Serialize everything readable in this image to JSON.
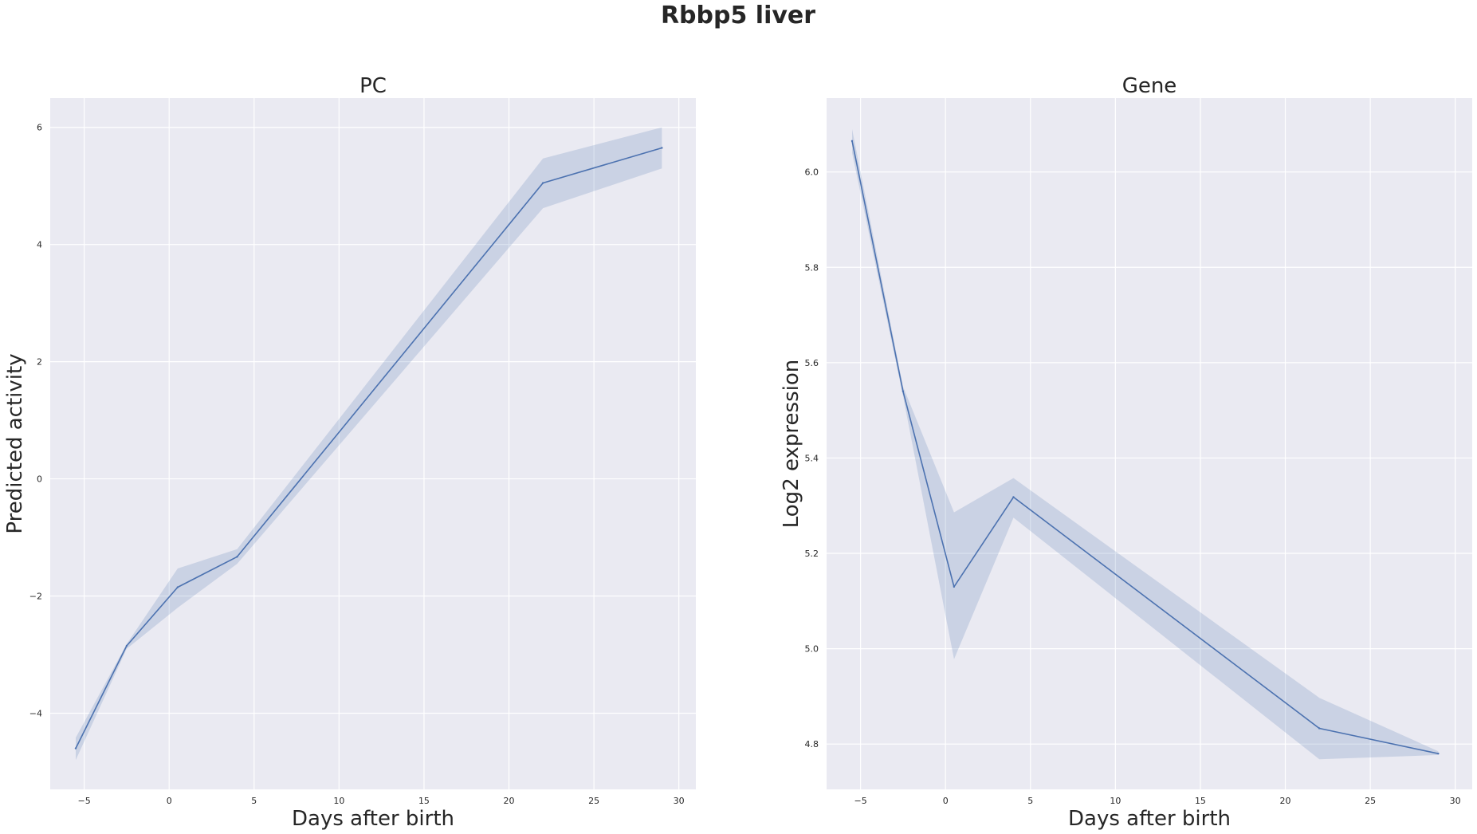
{
  "figure": {
    "title": "Rbbp5 liver"
  },
  "chart_data": [
    {
      "type": "line",
      "title": "PC",
      "xlabel": "Days after birth",
      "ylabel": "Predicted activity",
      "xlim": [
        -7,
        31
      ],
      "ylim": [
        -5.3,
        6.5
      ],
      "xticks": [
        -5,
        0,
        5,
        10,
        15,
        20,
        25,
        30
      ],
      "yticks": [
        -4,
        -2,
        0,
        2,
        4,
        6
      ],
      "ytick_labels": [
        "−4",
        "−2",
        "0",
        "2",
        "4",
        "6"
      ],
      "xtick_labels": [
        "−5",
        "0",
        "5",
        "10",
        "15",
        "20",
        "25",
        "30"
      ],
      "grid": true,
      "series": [
        {
          "x": [
            -5.5,
            -2.5,
            0.5,
            4,
            22,
            29
          ],
          "y": [
            -4.6,
            -2.85,
            -1.85,
            -1.33,
            5.05,
            5.65
          ],
          "ci_low": [
            -4.8,
            -2.9,
            -2.2,
            -1.45,
            4.62,
            5.3
          ],
          "ci_high": [
            -4.42,
            -2.82,
            -1.53,
            -1.2,
            5.47,
            6.0
          ]
        }
      ]
    },
    {
      "type": "line",
      "title": "Gene",
      "xlabel": "Days after birth",
      "ylabel": "Log2 expression",
      "xlim": [
        -7,
        31
      ],
      "ylim": [
        4.705,
        6.155
      ],
      "xticks": [
        -5,
        0,
        5,
        10,
        15,
        20,
        25,
        30
      ],
      "yticks": [
        4.8,
        5.0,
        5.2,
        5.4,
        5.6,
        5.8,
        6.0
      ],
      "ytick_labels": [
        "4.8",
        "5.0",
        "5.2",
        "5.4",
        "5.6",
        "5.8",
        "6.0"
      ],
      "xtick_labels": [
        "−5",
        "0",
        "5",
        "10",
        "15",
        "20",
        "25",
        "30"
      ],
      "grid": true,
      "series": [
        {
          "x": [
            -5.5,
            -2.5,
            0.5,
            4,
            22,
            29
          ],
          "y": [
            6.065,
            5.54,
            5.13,
            5.318,
            4.833,
            4.78
          ],
          "ci_low": [
            6.04,
            5.53,
            4.978,
            5.275,
            4.768,
            4.777
          ],
          "ci_high": [
            6.09,
            5.55,
            5.286,
            5.358,
            4.897,
            4.785
          ]
        }
      ]
    }
  ]
}
